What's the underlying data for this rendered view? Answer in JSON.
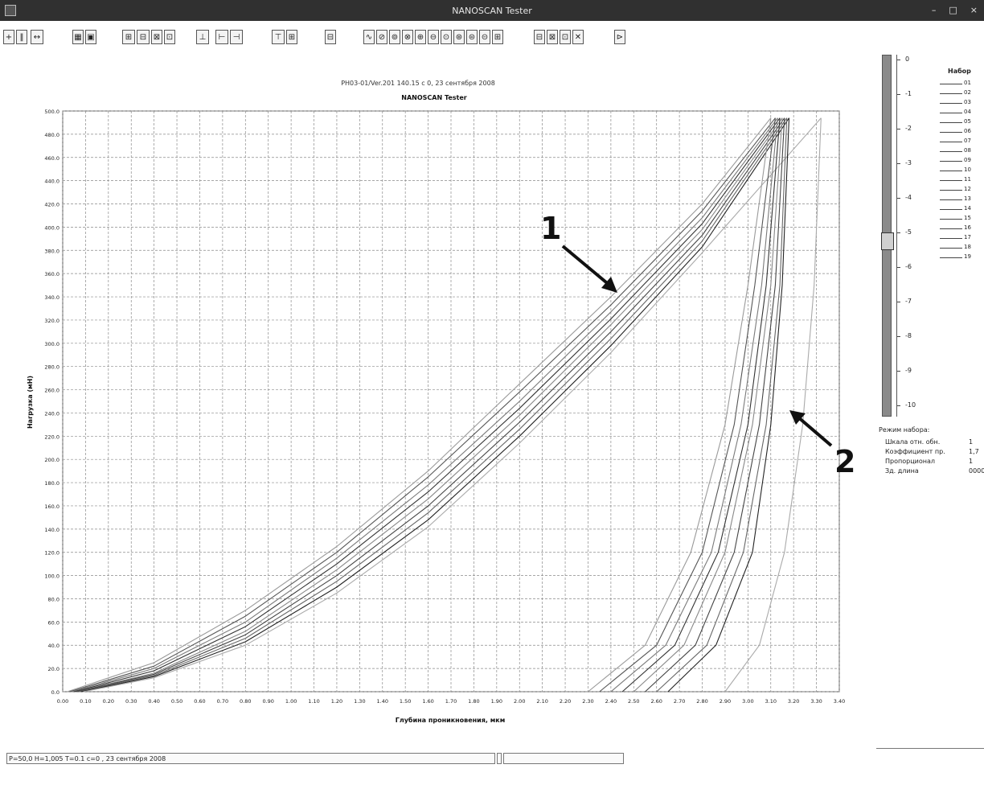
{
  "window": {
    "title": "NANOSCAN Tester",
    "controls": [
      "–",
      "□",
      "×"
    ]
  },
  "toolbar": {
    "buttons": [
      "+",
      "‖",
      "↔",
      "▦",
      "▣",
      "⊞",
      "⊟",
      "⊠",
      "⊡",
      "⊥",
      "⊢",
      "⊣",
      "⊤",
      "⊞",
      "⊟",
      "∿",
      "⊘",
      "⊚",
      "⊗",
      "⊕",
      "⊖",
      "⊙",
      "⊛",
      "⊜",
      "⊝",
      "⊞",
      "⊟",
      "⊠",
      "⊡",
      "✕",
      "⊳"
    ]
  },
  "chart_data": {
    "type": "line",
    "title": "NANOSCAN Tester",
    "subtitle": "PH03-01/Ver.201 140.15 с 0, 23 сентября 2008",
    "xlabel": "Глубина проникновения, мкм",
    "ylabel": "Нагрузка (мН)",
    "xlim": [
      0,
      3.4
    ],
    "ylim": [
      0,
      500
    ],
    "x_ticks": [
      "0.00",
      "0.10",
      "0.20",
      "0.30",
      "0.40",
      "0.50",
      "0.60",
      "0.70",
      "0.80",
      "0.90",
      "1.00",
      "1.10",
      "1.20",
      "1.30",
      "1.40",
      "1.50",
      "1.60",
      "1.70",
      "1.80",
      "1.90",
      "2.00",
      "2.10",
      "2.20",
      "2.30",
      "2.40",
      "2.50",
      "2.60",
      "2.70",
      "2.80",
      "2.90",
      "3.00",
      "3.10",
      "3.20",
      "3.30",
      "3.40"
    ],
    "y_ticks": [
      "0.0",
      "20.0",
      "40.0",
      "60.0",
      "80.0",
      "100.0",
      "120.0",
      "140.0",
      "160.0",
      "180.0",
      "200.0",
      "220.0",
      "240.0",
      "260.0",
      "280.0",
      "300.0",
      "320.0",
      "340.0",
      "360.0",
      "380.0",
      "400.0",
      "420.0",
      "440.0",
      "460.0",
      "480.0",
      "500.0"
    ],
    "grid": true,
    "loading_curves": [
      {
        "x": [
          0.02,
          0.4,
          0.8,
          1.2,
          1.6,
          2.0,
          2.4,
          2.8,
          3.1
        ],
        "y": [
          0,
          25,
          70,
          125,
          190,
          265,
          340,
          420,
          494
        ]
      },
      {
        "x": [
          0.03,
          0.4,
          0.8,
          1.2,
          1.6,
          2.0,
          2.4,
          2.8,
          3.12
        ],
        "y": [
          0,
          22,
          65,
          120,
          185,
          258,
          333,
          414,
          494
        ]
      },
      {
        "x": [
          0.04,
          0.4,
          0.8,
          1.2,
          1.6,
          2.0,
          2.4,
          2.8,
          3.13
        ],
        "y": [
          0,
          20,
          60,
          115,
          178,
          250,
          327,
          408,
          494
        ]
      },
      {
        "x": [
          0.05,
          0.4,
          0.8,
          1.2,
          1.6,
          2.0,
          2.4,
          2.8,
          3.14
        ],
        "y": [
          0,
          18,
          56,
          110,
          172,
          244,
          321,
          403,
          494
        ]
      },
      {
        "x": [
          0.06,
          0.4,
          0.8,
          1.2,
          1.6,
          2.0,
          2.4,
          2.8,
          3.15
        ],
        "y": [
          0,
          16,
          52,
          105,
          166,
          238,
          316,
          398,
          494
        ]
      },
      {
        "x": [
          0.06,
          0.4,
          0.8,
          1.2,
          1.6,
          2.0,
          2.4,
          2.8,
          3.16
        ],
        "y": [
          0,
          15,
          49,
          100,
          160,
          232,
          310,
          393,
          494
        ]
      },
      {
        "x": [
          0.07,
          0.4,
          0.8,
          1.2,
          1.6,
          2.0,
          2.4,
          2.8,
          3.17
        ],
        "y": [
          0,
          14,
          46,
          95,
          154,
          226,
          304,
          388,
          494
        ]
      },
      {
        "x": [
          0.08,
          0.4,
          0.8,
          1.2,
          1.6,
          2.0,
          2.4,
          2.8,
          3.18
        ],
        "y": [
          0,
          13,
          43,
          90,
          148,
          220,
          298,
          383,
          494
        ]
      },
      {
        "x": [
          0.09,
          0.4,
          0.8,
          1.2,
          1.6,
          2.0,
          2.4,
          2.8,
          3.32
        ],
        "y": [
          0,
          12,
          40,
          85,
          142,
          214,
          292,
          378,
          494
        ]
      }
    ],
    "unloading_curves": [
      {
        "x": [
          2.3,
          2.55,
          2.75,
          2.9,
          3.0,
          3.1
        ],
        "y": [
          0,
          40,
          120,
          230,
          350,
          494
        ]
      },
      {
        "x": [
          2.35,
          2.6,
          2.8,
          2.94,
          3.03,
          3.12
        ],
        "y": [
          0,
          40,
          120,
          230,
          350,
          494
        ]
      },
      {
        "x": [
          2.4,
          2.64,
          2.84,
          2.97,
          3.06,
          3.13
        ],
        "y": [
          0,
          40,
          120,
          230,
          350,
          494
        ]
      },
      {
        "x": [
          2.45,
          2.68,
          2.87,
          3.0,
          3.08,
          3.14
        ],
        "y": [
          0,
          40,
          120,
          230,
          350,
          494
        ]
      },
      {
        "x": [
          2.5,
          2.72,
          2.9,
          3.02,
          3.1,
          3.15
        ],
        "y": [
          0,
          40,
          120,
          230,
          350,
          494
        ]
      },
      {
        "x": [
          2.55,
          2.77,
          2.94,
          3.05,
          3.12,
          3.16
        ],
        "y": [
          0,
          40,
          120,
          230,
          350,
          494
        ]
      },
      {
        "x": [
          2.6,
          2.82,
          2.98,
          3.08,
          3.14,
          3.17
        ],
        "y": [
          0,
          40,
          120,
          230,
          350,
          494
        ]
      },
      {
        "x": [
          2.65,
          2.86,
          3.02,
          3.1,
          3.15,
          3.18
        ],
        "y": [
          0,
          40,
          120,
          230,
          350,
          494
        ]
      },
      {
        "x": [
          2.9,
          3.05,
          3.16,
          3.24,
          3.29,
          3.32
        ],
        "y": [
          0,
          40,
          120,
          230,
          350,
          494
        ]
      }
    ],
    "annotations": [
      "1",
      "2"
    ]
  },
  "right_panel": {
    "scale_labels": [
      "0",
      "-1",
      "-2",
      "-3",
      "-4",
      "-5",
      "-6",
      "-7",
      "-8",
      "-9",
      "-10"
    ],
    "legend_title": "Набор",
    "legend_items": [
      "01",
      "02",
      "03",
      "04",
      "05",
      "06",
      "07",
      "08",
      "09",
      "10",
      "11",
      "12",
      "13",
      "14",
      "15",
      "16",
      "17",
      "18",
      "19"
    ],
    "params_header": "Режим набора:",
    "params": [
      {
        "label": "Шкала отн. обн.",
        "value": "1"
      },
      {
        "label": "Коэффициент пр.",
        "value": "1,7"
      },
      {
        "label": "Пропорционал",
        "value": "1"
      },
      {
        "label": "Зд. длина",
        "value": "0000"
      }
    ]
  },
  "status": {
    "left": "P=50,0 H=1,005 T=0.1 c=0 , 23 сентября 2008",
    "middle": "",
    "right": ""
  }
}
